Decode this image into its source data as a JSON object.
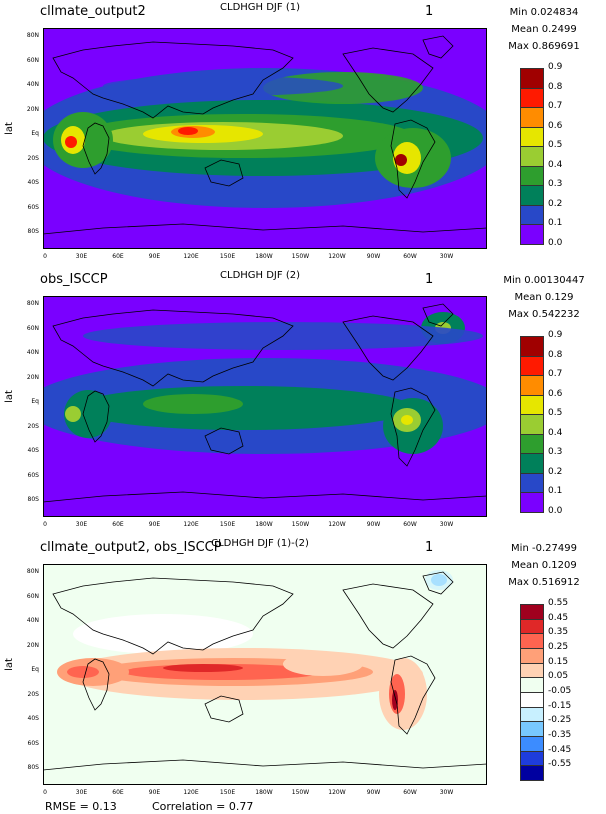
{
  "panels": [
    {
      "case_name": "cllmate_output2",
      "variable_title": "CLDHGH DJF (1)",
      "season_index": "1",
      "stats": {
        "min": "Min 0.024834",
        "mean": "Mean 0.2499",
        "max": "Max 0.869691"
      },
      "colorbar": {
        "labels": [
          "0.9",
          "0.8",
          "0.7",
          "0.6",
          "0.5",
          "0.4",
          "0.3",
          "0.2",
          "0.1",
          "0.0"
        ],
        "colors": [
          "#a00000",
          "#ff1a00",
          "#ff8c00",
          "#e6e600",
          "#9acd32",
          "#2e9e2e",
          "#00805a",
          "#2848c8",
          "#7a00ff"
        ]
      }
    },
    {
      "case_name": "obs_ISCCP",
      "variable_title": "CLDHGH DJF (2)",
      "season_index": "1",
      "stats": {
        "min": "Min 0.00130447",
        "mean": "Mean 0.129",
        "max": "Max 0.542232"
      },
      "colorbar": {
        "labels": [
          "0.9",
          "0.8",
          "0.7",
          "0.6",
          "0.5",
          "0.4",
          "0.3",
          "0.2",
          "0.1",
          "0.0"
        ],
        "colors": [
          "#a00000",
          "#ff1a00",
          "#ff8c00",
          "#e6e600",
          "#9acd32",
          "#2e9e2e",
          "#00805a",
          "#2848c8",
          "#7a00ff"
        ]
      }
    },
    {
      "case_name": "cllmate_output2, obs_ISCCP",
      "variable_title": "CLDHGH DJF (1)-(2)",
      "season_index": "1",
      "stats": {
        "min": "Min -0.27499",
        "mean": "Mean 0.1209",
        "max": "Max 0.516912"
      },
      "colorbar": {
        "labels": [
          "0.55",
          "0.45",
          "0.35",
          "0.25",
          "0.15",
          "0.05",
          "-0.05",
          "-0.15",
          "-0.25",
          "-0.35",
          "-0.45",
          "-0.55"
        ],
        "colors": [
          "#a0001e",
          "#e02828",
          "#ff6450",
          "#ffa078",
          "#ffd2b4",
          "#f0fff0",
          "#ffffff",
          "#c8f0ff",
          "#78c8ff",
          "#3c8cff",
          "#1e3cdc",
          "#0000a0"
        ]
      }
    }
  ],
  "axes": {
    "ylabel": "lat",
    "lat_ticks": [
      "80N",
      "60N",
      "40N",
      "20N",
      "Eq",
      "20S",
      "40S",
      "60S",
      "80S"
    ],
    "lon_ticks": [
      "0",
      "30E",
      "60E",
      "90E",
      "120E",
      "150E",
      "180W",
      "150W",
      "120W",
      "90W",
      "60W",
      "30W"
    ]
  },
  "footer": {
    "rmse": "RMSE = 0.13",
    "correlation": "Correlation = 0.77"
  }
}
